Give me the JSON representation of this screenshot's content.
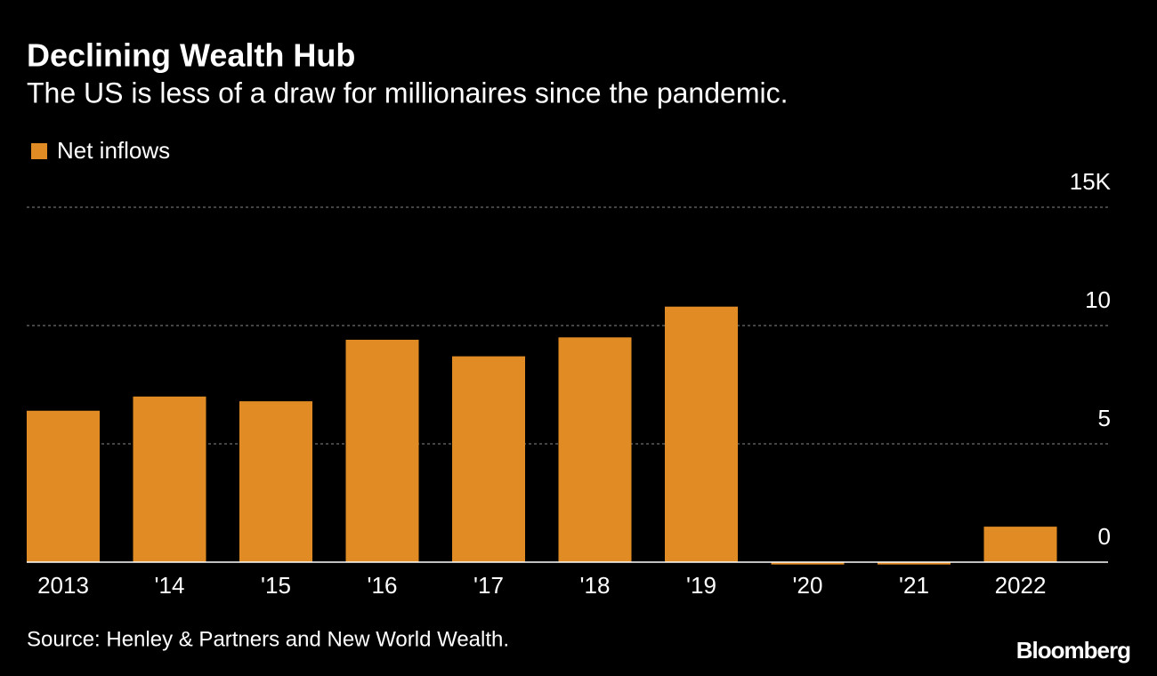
{
  "chart_data": {
    "type": "bar",
    "title": "Declining Wealth Hub",
    "subtitle": "The US is less of a draw for millionaires since the pandemic.",
    "legend": "Net inflows",
    "categories": [
      "2013",
      "'14",
      "'15",
      "'16",
      "'17",
      "'18",
      "'19",
      "'20",
      "'21",
      "2022"
    ],
    "values": [
      6.4,
      7.0,
      6.8,
      9.4,
      8.7,
      9.5,
      10.8,
      -0.1,
      -0.1,
      1.5
    ],
    "color": "#e08b24",
    "ylim": [
      0,
      15
    ],
    "yticks": [
      {
        "value": 15,
        "label": "15K"
      },
      10,
      5,
      0
    ],
    "grid": true,
    "source": "Source: Henley & Partners and New World Wealth.",
    "brand": "Bloomberg"
  }
}
